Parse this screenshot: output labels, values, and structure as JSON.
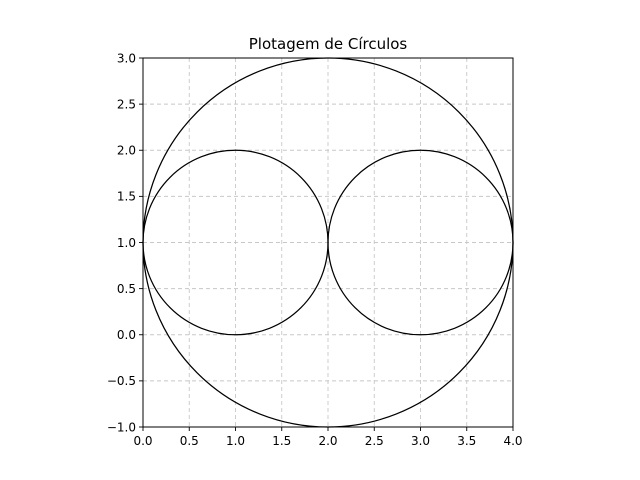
{
  "chart_data": {
    "type": "scatter",
    "title": "Plotagem de Círculos",
    "xlabel": "",
    "ylabel": "",
    "xlim": [
      0.0,
      4.0
    ],
    "ylim": [
      -1.0,
      3.0
    ],
    "grid": true,
    "aspect": "equal",
    "x_ticks": [
      0.0,
      0.5,
      1.0,
      1.5,
      2.0,
      2.5,
      3.0,
      3.5,
      4.0
    ],
    "x_tick_labels": [
      "0.0",
      "0.5",
      "1.0",
      "1.5",
      "2.0",
      "2.5",
      "3.0",
      "3.5",
      "4.0"
    ],
    "y_ticks": [
      -1.0,
      -0.5,
      0.0,
      0.5,
      1.0,
      1.5,
      2.0,
      2.5,
      3.0
    ],
    "y_tick_labels": [
      "−1.0",
      "−0.5",
      "0.0",
      "0.5",
      "1.0",
      "1.5",
      "2.0",
      "2.5",
      "3.0"
    ],
    "circles": [
      {
        "cx": 2.0,
        "cy": 1.0,
        "r": 2.0
      },
      {
        "cx": 1.0,
        "cy": 1.0,
        "r": 1.0
      },
      {
        "cx": 3.0,
        "cy": 1.0,
        "r": 1.0
      }
    ],
    "line_color": "#000000",
    "grid_color": "#c8c8c8"
  }
}
